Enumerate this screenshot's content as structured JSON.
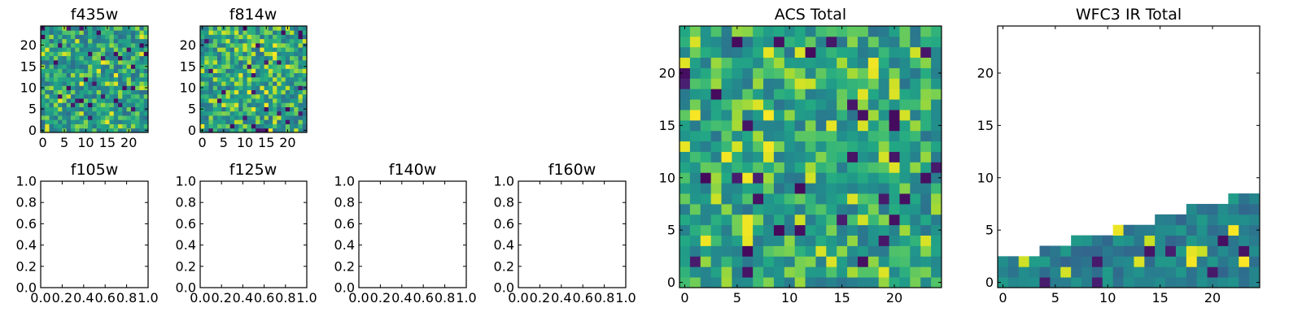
{
  "chart_data": [
    {
      "id": "p_f435w",
      "type": "heatmap",
      "title": "f435w",
      "xticks": [
        0,
        5,
        10,
        15,
        20
      ],
      "yticks": [
        0,
        5,
        10,
        15,
        20
      ],
      "xlim": [
        -0.5,
        24.5
      ],
      "ylim": [
        -0.5,
        24.5
      ],
      "grid_size": 25,
      "cmap": "viridis",
      "mean": 0.68,
      "spread": 0.12,
      "seed": 101
    },
    {
      "id": "p_f814w",
      "type": "heatmap",
      "title": "f814w",
      "xticks": [
        0,
        5,
        10,
        15,
        20
      ],
      "yticks": [
        0,
        5,
        10,
        15,
        20
      ],
      "xlim": [
        -0.5,
        24.5
      ],
      "ylim": [
        -0.5,
        24.5
      ],
      "grid_size": 25,
      "cmap": "viridis",
      "mean": 0.7,
      "spread": 0.13,
      "seed": 202
    },
    {
      "id": "p_f105w",
      "type": "scatter",
      "title": "f105w",
      "xticks": [
        "0.0",
        "0.2",
        "0.4",
        "0.6",
        "0.8",
        "1.0"
      ],
      "yticks": [
        "0.0",
        "0.2",
        "0.4",
        "0.6",
        "0.8",
        "1.0"
      ],
      "xlim": [
        0,
        1
      ],
      "ylim": [
        0,
        1
      ],
      "points": []
    },
    {
      "id": "p_f125w",
      "type": "scatter",
      "title": "f125w",
      "xticks": [
        "0.0",
        "0.2",
        "0.4",
        "0.6",
        "0.8",
        "1.0"
      ],
      "yticks": [
        "0.0",
        "0.2",
        "0.4",
        "0.6",
        "0.8",
        "1.0"
      ],
      "xlim": [
        0,
        1
      ],
      "ylim": [
        0,
        1
      ],
      "points": []
    },
    {
      "id": "p_f140w",
      "type": "scatter",
      "title": "f140w",
      "xticks": [
        "0.0",
        "0.2",
        "0.4",
        "0.6",
        "0.8",
        "1.0"
      ],
      "yticks": [
        "0.0",
        "0.2",
        "0.4",
        "0.6",
        "0.8",
        "1.0"
      ],
      "xlim": [
        0,
        1
      ],
      "ylim": [
        0,
        1
      ],
      "points": []
    },
    {
      "id": "p_f160w",
      "type": "scatter",
      "title": "f160w",
      "xticks": [
        "0.0",
        "0.2",
        "0.4",
        "0.6",
        "0.8",
        "1.0"
      ],
      "yticks": [
        "0.0",
        "0.2",
        "0.4",
        "0.6",
        "0.8",
        "1.0"
      ],
      "xlim": [
        0,
        1
      ],
      "ylim": [
        0,
        1
      ],
      "points": []
    },
    {
      "id": "p_acs_total",
      "type": "heatmap",
      "title": "ACS Total",
      "xticks": [
        0,
        5,
        10,
        15,
        20
      ],
      "yticks": [
        0,
        5,
        10,
        15,
        20
      ],
      "xlim": [
        -0.5,
        24.5
      ],
      "ylim": [
        -0.5,
        24.5
      ],
      "grid_size": 25,
      "cmap": "viridis",
      "mean": 0.7,
      "spread": 0.11,
      "seed": 303
    },
    {
      "id": "p_wfc3_total",
      "type": "heatmap",
      "title": "WFC3 IR Total",
      "xticks": [
        0,
        5,
        10,
        15,
        20
      ],
      "yticks": [
        0,
        5,
        10,
        15,
        20
      ],
      "xlim": [
        -0.5,
        24.5
      ],
      "ylim": [
        -0.5,
        24.5
      ],
      "grid_size": 25,
      "cmap": "viridis",
      "mean": 0.55,
      "spread": 0.07,
      "seed": 404,
      "filled_rows_by_column": [
        3,
        3,
        3,
        3,
        4,
        4,
        4,
        5,
        5,
        5,
        5,
        6,
        6,
        6,
        6,
        7,
        7,
        7,
        8,
        8,
        8,
        8,
        9,
        9,
        9
      ]
    }
  ]
}
